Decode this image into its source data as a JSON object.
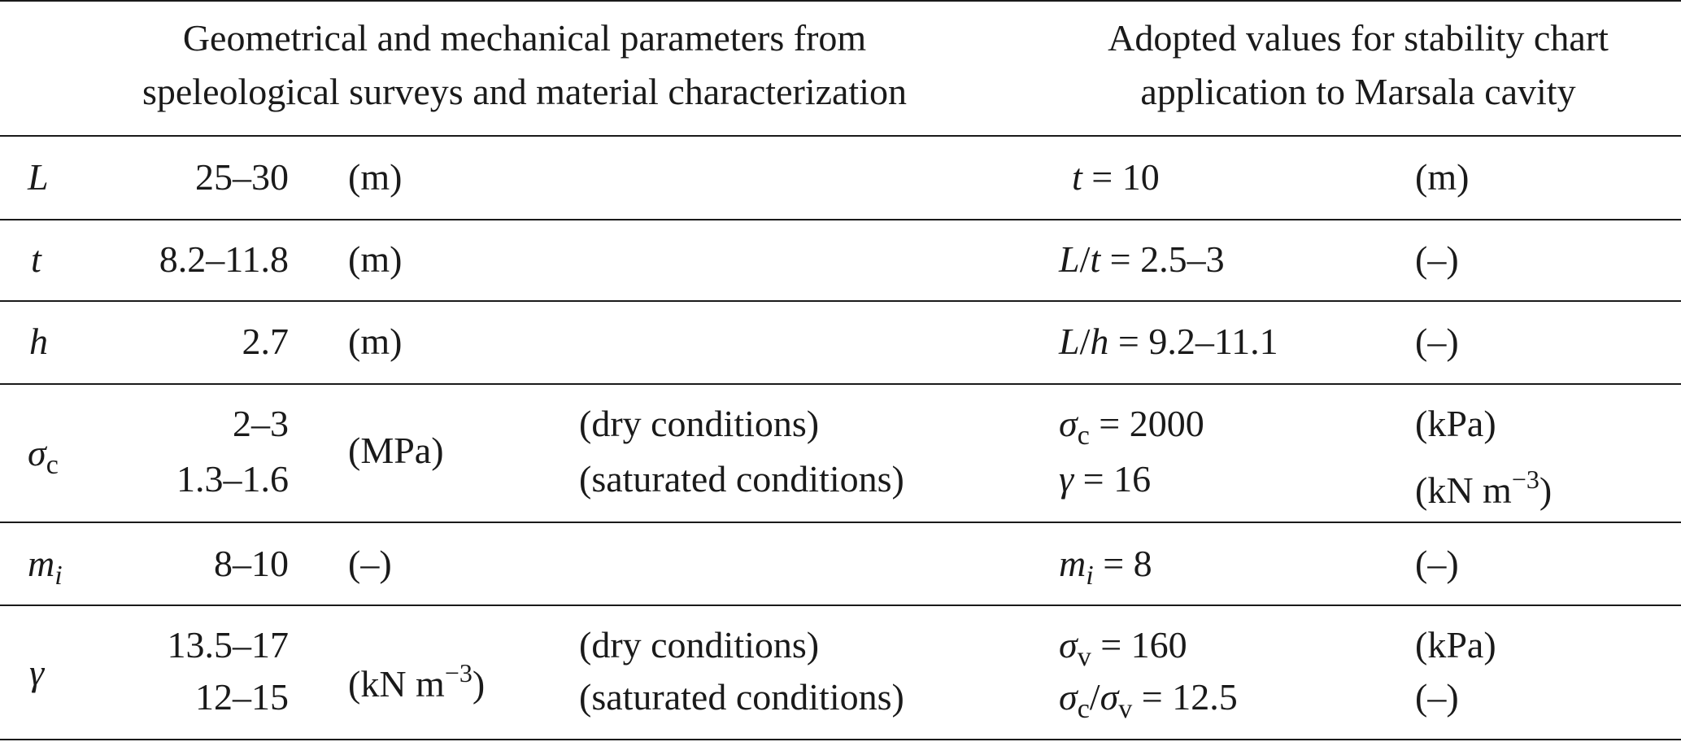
{
  "header": {
    "left_line1": "Geometrical and mechanical parameters from",
    "left_line2": "speleological surveys and material characterization",
    "right_line1": "Adopted values for stability chart",
    "right_line2": "application to Marsala cavity"
  },
  "rows": [
    {
      "param": "L",
      "values": [
        "25–30"
      ],
      "unit": "(m)",
      "adopted": [
        {
          "text": "t = 10",
          "unit": "(m)"
        }
      ]
    },
    {
      "param": "t",
      "values": [
        "8.2–11.8"
      ],
      "unit": "(m)",
      "adopted": [
        {
          "text": "L/t = 2.5–3",
          "unit": "(–)"
        }
      ]
    },
    {
      "param": "h",
      "values": [
        "2.7"
      ],
      "unit": "(m)",
      "adopted": [
        {
          "text": "L/h = 9.2–11.1",
          "unit": "(–)"
        }
      ]
    },
    {
      "param": "σc",
      "values": [
        "2–3",
        "1.3–1.6"
      ],
      "unit": "(MPa)",
      "conditions": [
        "(dry conditions)",
        "(saturated conditions)"
      ],
      "adopted": [
        {
          "text": "σc = 2000",
          "unit": "(kPa)"
        },
        {
          "text": "γ = 16",
          "unit": "(kN m−3)"
        }
      ]
    },
    {
      "param": "mi",
      "values": [
        "8–10"
      ],
      "unit": "(–)",
      "adopted": [
        {
          "text": "mi = 8",
          "unit": "(–)"
        }
      ]
    },
    {
      "param": "γ",
      "values": [
        "13.5–17",
        "12–15"
      ],
      "unit": "(kN m−3)",
      "conditions": [
        "(dry conditions)",
        "(saturated conditions)"
      ],
      "adopted": [
        {
          "text": "σv = 160",
          "unit": "(kPa)"
        },
        {
          "text": "σc/σv = 12.5",
          "unit": "(–)"
        }
      ]
    }
  ],
  "labels": {
    "r0_val": "25–30",
    "r0_unit": "(m)",
    "r0_adopted_val": "10",
    "r0_adopted_unit": "(m)",
    "r1_val": "8.2–11.8",
    "r1_unit": "(m)",
    "r1_adopted_val": "2.5–3",
    "r1_adopted_unit": "(–)",
    "r2_val": "2.7",
    "r2_unit": "(m)",
    "r2_adopted_val": "9.2–11.1",
    "r2_adopted_unit": "(–)",
    "r3_val1": "2–3",
    "r3_val2": "1.3–1.6",
    "r3_unit": "(MPa)",
    "r3_cond1": "(dry conditions)",
    "r3_cond2": "(saturated conditions)",
    "r3_adopted1_val": "2000",
    "r3_adopted1_unit": "(kPa)",
    "r3_adopted2_val": "16",
    "r3_adopted2_unit_pre": "(kN m",
    "r3_adopted2_unit_exp": "−3",
    "r3_adopted2_unit_post": ")",
    "r4_val": "8–10",
    "r4_unit": "(–)",
    "r4_adopted_val": "8",
    "r4_adopted_unit": "(–)",
    "r5_val1": "13.5–17",
    "r5_val2": "12–15",
    "r5_unit_pre": "(kN m",
    "r5_unit_exp": "−3",
    "r5_unit_post": ")",
    "r5_cond1": "(dry conditions)",
    "r5_cond2": "(saturated conditions)",
    "r5_adopted1_val": "160",
    "r5_adopted1_unit": "(kPa)",
    "r5_adopted2_val": "12.5",
    "r5_adopted2_unit": "(–)"
  }
}
